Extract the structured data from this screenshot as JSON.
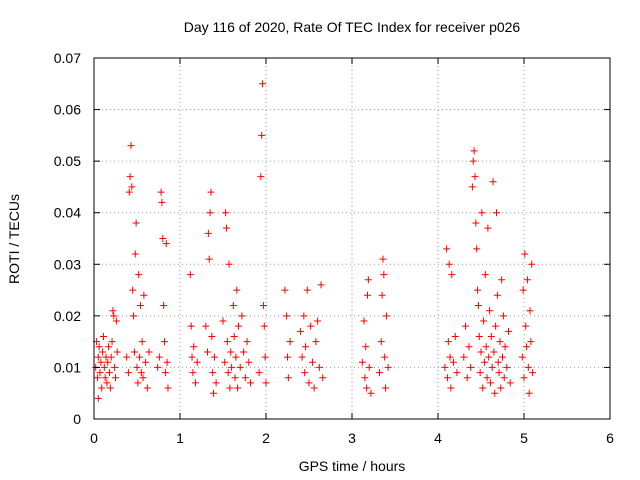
{
  "chart_data": {
    "type": "scatter",
    "title": "Day 116 of 2020, Rate Of TEC Index for receiver p026",
    "xlabel": "GPS time / hours",
    "ylabel": "ROTI / TECUs",
    "xlim": [
      0,
      6
    ],
    "ylim": [
      0,
      0.07
    ],
    "xticks": [
      0,
      1,
      2,
      3,
      4,
      5,
      6
    ],
    "yticks": [
      0,
      0.01,
      0.02,
      0.03,
      0.04,
      0.05,
      0.06,
      0.07
    ],
    "xtick_labels": [
      "0",
      "1",
      "2",
      "3",
      "4",
      "5",
      "6"
    ],
    "ytick_labels": [
      "0",
      "0.01",
      "0.02",
      "0.03",
      "0.04",
      "0.05",
      "0.06",
      "0.07"
    ],
    "grid": true,
    "marker": "+",
    "color": "#ff0000",
    "series": [
      {
        "name": "ROTI",
        "points": [
          [
            0.02,
            0.01
          ],
          [
            0.03,
            0.015
          ],
          [
            0.04,
            0.008
          ],
          [
            0.05,
            0.012
          ],
          [
            0.05,
            0.004
          ],
          [
            0.06,
            0.014
          ],
          [
            0.07,
            0.009
          ],
          [
            0.08,
            0.011
          ],
          [
            0.09,
            0.006
          ],
          [
            0.1,
            0.013
          ],
          [
            0.11,
            0.016
          ],
          [
            0.12,
            0.01
          ],
          [
            0.13,
            0.008
          ],
          [
            0.14,
            0.012
          ],
          [
            0.15,
            0.007
          ],
          [
            0.16,
            0.011
          ],
          [
            0.17,
            0.014
          ],
          [
            0.18,
            0.009
          ],
          [
            0.19,
            0.006
          ],
          [
            0.2,
            0.012
          ],
          [
            0.21,
            0.015
          ],
          [
            0.22,
            0.021
          ],
          [
            0.23,
            0.02
          ],
          [
            0.24,
            0.01
          ],
          [
            0.25,
            0.008
          ],
          [
            0.26,
            0.019
          ],
          [
            0.27,
            0.013
          ],
          [
            0.38,
            0.012
          ],
          [
            0.4,
            0.009
          ],
          [
            0.41,
            0.044
          ],
          [
            0.42,
            0.047
          ],
          [
            0.43,
            0.053
          ],
          [
            0.44,
            0.045
          ],
          [
            0.45,
            0.025
          ],
          [
            0.46,
            0.02
          ],
          [
            0.47,
            0.013
          ],
          [
            0.48,
            0.032
          ],
          [
            0.49,
            0.038
          ],
          [
            0.5,
            0.01
          ],
          [
            0.51,
            0.007
          ],
          [
            0.52,
            0.028
          ],
          [
            0.53,
            0.012
          ],
          [
            0.54,
            0.022
          ],
          [
            0.55,
            0.009
          ],
          [
            0.56,
            0.015
          ],
          [
            0.57,
            0.008
          ],
          [
            0.58,
            0.024
          ],
          [
            0.6,
            0.011
          ],
          [
            0.62,
            0.006
          ],
          [
            0.64,
            0.013
          ],
          [
            0.74,
            0.01
          ],
          [
            0.76,
            0.012
          ],
          [
            0.78,
            0.044
          ],
          [
            0.79,
            0.042
          ],
          [
            0.8,
            0.035
          ],
          [
            0.81,
            0.022
          ],
          [
            0.82,
            0.015
          ],
          [
            0.83,
            0.009
          ],
          [
            0.84,
            0.034
          ],
          [
            0.85,
            0.011
          ],
          [
            0.86,
            0.006
          ],
          [
            1.12,
            0.028
          ],
          [
            1.13,
            0.018
          ],
          [
            1.14,
            0.012
          ],
          [
            1.15,
            0.009
          ],
          [
            1.16,
            0.014
          ],
          [
            1.18,
            0.007
          ],
          [
            1.2,
            0.011
          ],
          [
            1.3,
            0.018
          ],
          [
            1.32,
            0.013
          ],
          [
            1.33,
            0.036
          ],
          [
            1.34,
            0.031
          ],
          [
            1.35,
            0.04
          ],
          [
            1.36,
            0.044
          ],
          [
            1.37,
            0.016
          ],
          [
            1.38,
            0.009
          ],
          [
            1.39,
            0.005
          ],
          [
            1.4,
            0.012
          ],
          [
            1.42,
            0.007
          ],
          [
            1.5,
            0.019
          ],
          [
            1.52,
            0.011
          ],
          [
            1.53,
            0.04
          ],
          [
            1.54,
            0.037
          ],
          [
            1.55,
            0.015
          ],
          [
            1.56,
            0.009
          ],
          [
            1.57,
            0.03
          ],
          [
            1.58,
            0.006
          ],
          [
            1.59,
            0.013
          ],
          [
            1.6,
            0.01
          ],
          [
            1.62,
            0.022
          ],
          [
            1.63,
            0.016
          ],
          [
            1.64,
            0.008
          ],
          [
            1.65,
            0.012
          ],
          [
            1.66,
            0.025
          ],
          [
            1.67,
            0.006
          ],
          [
            1.68,
            0.018
          ],
          [
            1.7,
            0.01
          ],
          [
            1.72,
            0.02
          ],
          [
            1.74,
            0.013
          ],
          [
            1.76,
            0.008
          ],
          [
            1.78,
            0.015
          ],
          [
            1.8,
            0.011
          ],
          [
            1.82,
            0.007
          ],
          [
            1.92,
            0.009
          ],
          [
            1.94,
            0.047
          ],
          [
            1.95,
            0.055
          ],
          [
            1.96,
            0.065
          ],
          [
            1.97,
            0.022
          ],
          [
            1.98,
            0.018
          ],
          [
            1.99,
            0.012
          ],
          [
            2.0,
            0.007
          ],
          [
            2.22,
            0.025
          ],
          [
            2.24,
            0.02
          ],
          [
            2.25,
            0.012
          ],
          [
            2.26,
            0.008
          ],
          [
            2.28,
            0.015
          ],
          [
            2.4,
            0.017
          ],
          [
            2.42,
            0.012
          ],
          [
            2.44,
            0.02
          ],
          [
            2.45,
            0.009
          ],
          [
            2.46,
            0.014
          ],
          [
            2.48,
            0.025
          ],
          [
            2.5,
            0.007
          ],
          [
            2.52,
            0.018
          ],
          [
            2.54,
            0.011
          ],
          [
            2.56,
            0.006
          ],
          [
            2.58,
            0.015
          ],
          [
            2.6,
            0.019
          ],
          [
            2.62,
            0.01
          ],
          [
            2.64,
            0.026
          ],
          [
            2.66,
            0.008
          ],
          [
            3.12,
            0.011
          ],
          [
            3.14,
            0.019
          ],
          [
            3.15,
            0.008
          ],
          [
            3.16,
            0.014
          ],
          [
            3.17,
            0.006
          ],
          [
            3.18,
            0.024
          ],
          [
            3.19,
            0.027
          ],
          [
            3.2,
            0.01
          ],
          [
            3.22,
            0.005
          ],
          [
            3.32,
            0.009
          ],
          [
            3.34,
            0.015
          ],
          [
            3.35,
            0.024
          ],
          [
            3.36,
            0.031
          ],
          [
            3.37,
            0.028
          ],
          [
            3.38,
            0.012
          ],
          [
            3.39,
            0.006
          ],
          [
            3.4,
            0.02
          ],
          [
            3.42,
            0.01
          ],
          [
            4.08,
            0.01
          ],
          [
            4.1,
            0.033
          ],
          [
            4.11,
            0.008
          ],
          [
            4.12,
            0.015
          ],
          [
            4.13,
            0.03
          ],
          [
            4.14,
            0.012
          ],
          [
            4.15,
            0.006
          ],
          [
            4.16,
            0.028
          ],
          [
            4.18,
            0.011
          ],
          [
            4.2,
            0.016
          ],
          [
            4.22,
            0.009
          ],
          [
            4.3,
            0.012
          ],
          [
            4.32,
            0.018
          ],
          [
            4.34,
            0.008
          ],
          [
            4.36,
            0.014
          ],
          [
            4.38,
            0.01
          ],
          [
            4.4,
            0.045
          ],
          [
            4.41,
            0.05
          ],
          [
            4.42,
            0.052
          ],
          [
            4.43,
            0.047
          ],
          [
            4.44,
            0.038
          ],
          [
            4.45,
            0.033
          ],
          [
            4.46,
            0.025
          ],
          [
            4.47,
            0.022
          ],
          [
            4.48,
            0.016
          ],
          [
            4.49,
            0.009
          ],
          [
            4.5,
            0.013
          ],
          [
            4.51,
            0.04
          ],
          [
            4.52,
            0.006
          ],
          [
            4.53,
            0.019
          ],
          [
            4.54,
            0.011
          ],
          [
            4.55,
            0.028
          ],
          [
            4.56,
            0.014
          ],
          [
            4.57,
            0.008
          ],
          [
            4.58,
            0.037
          ],
          [
            4.59,
            0.012
          ],
          [
            4.6,
            0.021
          ],
          [
            4.61,
            0.007
          ],
          [
            4.62,
            0.016
          ],
          [
            4.63,
            0.01
          ],
          [
            4.64,
            0.046
          ],
          [
            4.65,
            0.013
          ],
          [
            4.66,
            0.005
          ],
          [
            4.67,
            0.018
          ],
          [
            4.68,
            0.04
          ],
          [
            4.69,
            0.024
          ],
          [
            4.7,
            0.011
          ],
          [
            4.71,
            0.009
          ],
          [
            4.72,
            0.015
          ],
          [
            4.73,
            0.006
          ],
          [
            4.74,
            0.027
          ],
          [
            4.75,
            0.012
          ],
          [
            4.76,
            0.02
          ],
          [
            4.77,
            0.008
          ],
          [
            4.78,
            0.014
          ],
          [
            4.8,
            0.01
          ],
          [
            4.82,
            0.017
          ],
          [
            4.84,
            0.007
          ],
          [
            4.98,
            0.012
          ],
          [
            4.99,
            0.025
          ],
          [
            5.0,
            0.008
          ],
          [
            5.01,
            0.032
          ],
          [
            5.02,
            0.018
          ],
          [
            5.03,
            0.014
          ],
          [
            5.04,
            0.027
          ],
          [
            5.05,
            0.01
          ],
          [
            5.06,
            0.005
          ],
          [
            5.07,
            0.021
          ],
          [
            5.08,
            0.015
          ],
          [
            5.09,
            0.03
          ],
          [
            5.1,
            0.009
          ]
        ]
      }
    ]
  }
}
